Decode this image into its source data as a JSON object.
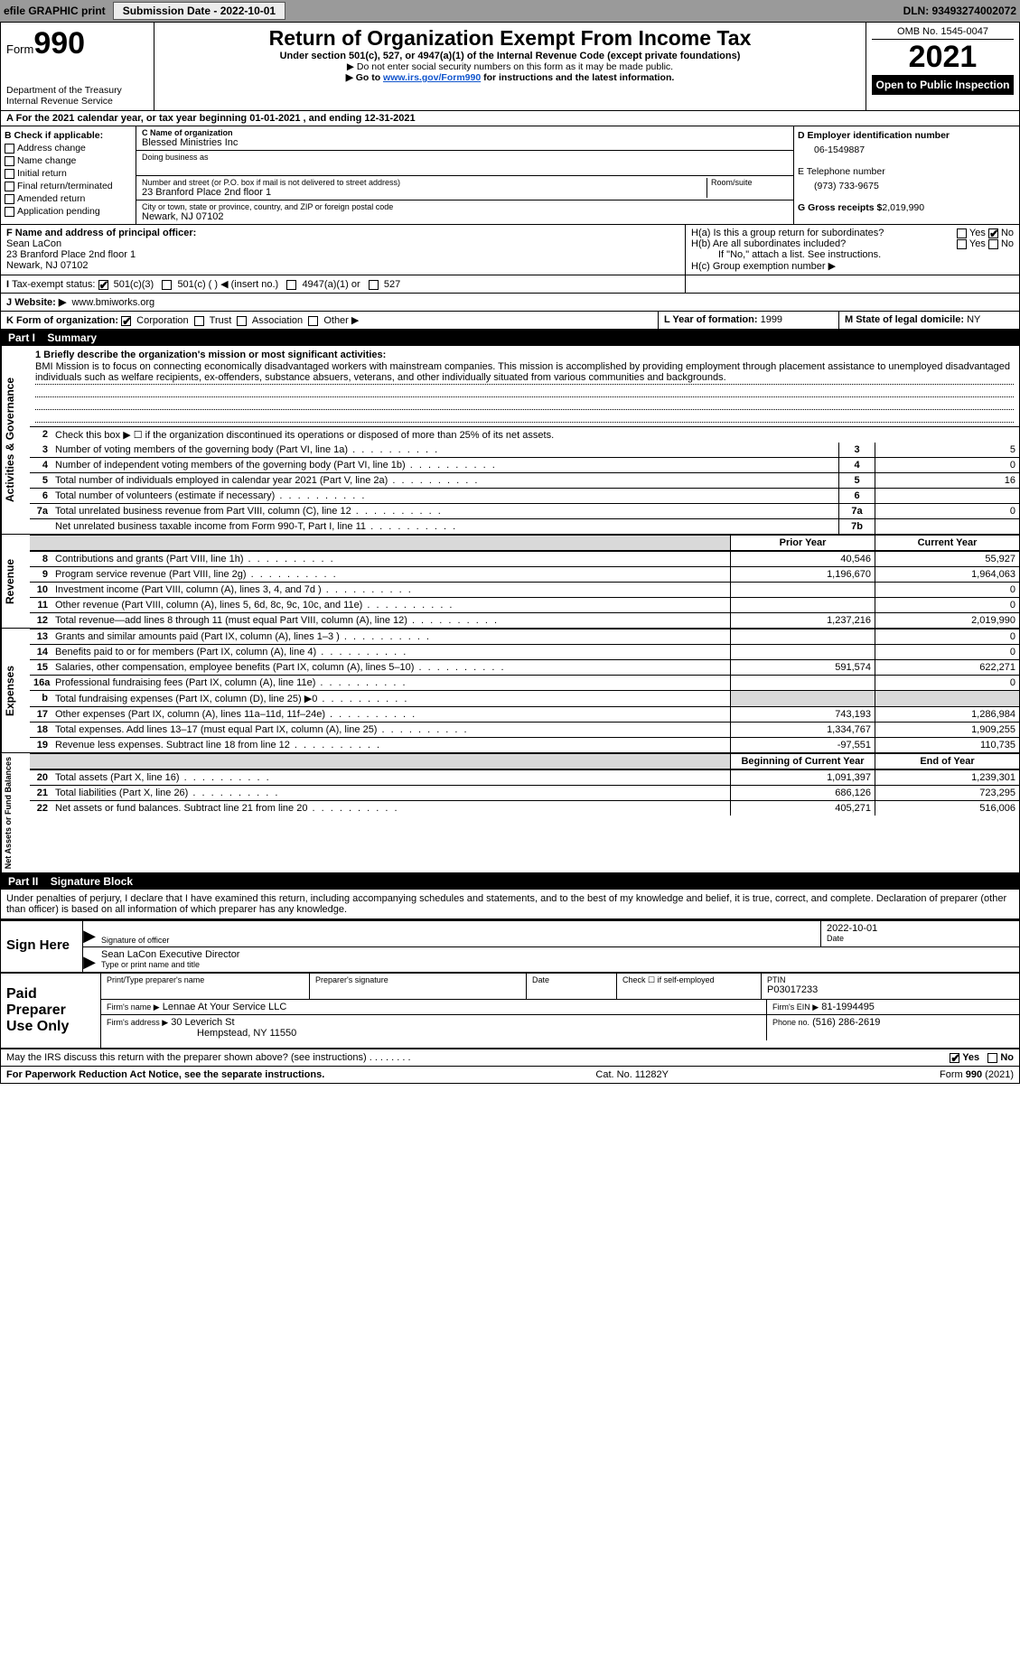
{
  "topbar": {
    "efile": "efile GRAPHIC print",
    "submission": "Submission Date - 2022-10-01",
    "dln": "DLN: 93493274002072"
  },
  "header": {
    "form_word": "Form",
    "form_no": "990",
    "dept": "Department of the Treasury",
    "irs": "Internal Revenue Service",
    "title": "Return of Organization Exempt From Income Tax",
    "subtitle": "Under section 501(c), 527, or 4947(a)(1) of the Internal Revenue Code (except private foundations)",
    "note1": "▶ Do not enter social security numbers on this form as it may be made public.",
    "note2_pre": "▶ Go to ",
    "note2_link": "www.irs.gov/Form990",
    "note2_post": " for instructions and the latest information.",
    "omb": "OMB No. 1545-0047",
    "year": "2021",
    "open": "Open to Public Inspection"
  },
  "A": "For the 2021 calendar year, or tax year beginning 01-01-2021   , and ending 12-31-2021",
  "B": {
    "label": "B Check if applicable:",
    "items": [
      "Address change",
      "Name change",
      "Initial return",
      "Final return/terminated",
      "Amended return",
      "Application pending"
    ]
  },
  "C": {
    "name_lbl": "C Name of organization",
    "name": "Blessed Ministries Inc",
    "dba_lbl": "Doing business as",
    "dba": "",
    "addr_lbl": "Number and street (or P.O. box if mail is not delivered to street address)",
    "room_lbl": "Room/suite",
    "addr": "23 Branford Place 2nd floor 1",
    "city_lbl": "City or town, state or province, country, and ZIP or foreign postal code",
    "city": "Newark, NJ  07102"
  },
  "D": {
    "lbl": "D Employer identification number",
    "val": "06-1549887"
  },
  "E": {
    "lbl": "E Telephone number",
    "val": "(973) 733-9675"
  },
  "G": {
    "lbl": "G Gross receipts $",
    "val": "2,019,990"
  },
  "F": {
    "lbl": "F  Name and address of principal officer:",
    "name": "Sean LaCon",
    "addr1": "23 Branford Place 2nd floor 1",
    "addr2": "Newark, NJ  07102"
  },
  "H": {
    "a": "H(a)  Is this a group return for subordinates?",
    "b": "H(b)  Are all subordinates included?",
    "b_note": "If \"No,\" attach a list. See instructions.",
    "c": "H(c)  Group exemption number ▶"
  },
  "I": {
    "lbl": "Tax-exempt status:",
    "opts": [
      "501(c)(3)",
      "501(c) (   ) ◀ (insert no.)",
      "4947(a)(1) or",
      "527"
    ]
  },
  "J": {
    "lbl": "Website: ▶",
    "val": "www.bmiworks.org"
  },
  "K": {
    "lbl": "K Form of organization:",
    "opts": [
      "Corporation",
      "Trust",
      "Association",
      "Other ▶"
    ]
  },
  "L": {
    "lbl": "L Year of formation:",
    "val": "1999"
  },
  "M": {
    "lbl": "M State of legal domicile:",
    "val": "NY"
  },
  "part1": {
    "title": "Part I",
    "name": "Summary",
    "q1": "1  Briefly describe the organization's mission or most significant activities:",
    "mission": "BMI Mission is to focus on connecting economically disadvantaged workers with mainstream companies. This mission is accomplished by providing employment through placement assistance to unemployed disadvantaged individuals such as welfare recipients, ex-offenders, substance absuers, veterans, and other individually situated from various communities and backgrounds.",
    "q2": "Check this box ▶ ☐  if the organization discontinued its operations or disposed of more than 25% of its net assets.",
    "lines_small": [
      {
        "n": "3",
        "d": "Number of voting members of the governing body (Part VI, line 1a)",
        "box": "3",
        "v": "5"
      },
      {
        "n": "4",
        "d": "Number of independent voting members of the governing body (Part VI, line 1b)",
        "box": "4",
        "v": "0"
      },
      {
        "n": "5",
        "d": "Total number of individuals employed in calendar year 2021 (Part V, line 2a)",
        "box": "5",
        "v": "16"
      },
      {
        "n": "6",
        "d": "Total number of volunteers (estimate if necessary)",
        "box": "6",
        "v": ""
      },
      {
        "n": "7a",
        "d": "Total unrelated business revenue from Part VIII, column (C), line 12",
        "box": "7a",
        "v": "0"
      },
      {
        "n": "",
        "d": "Net unrelated business taxable income from Form 990-T, Part I, line 11",
        "box": "7b",
        "v": ""
      }
    ],
    "col_hdr": {
      "b": "",
      "c1": "Prior Year",
      "c2": "Current Year"
    },
    "revenue": [
      {
        "n": "8",
        "d": "Contributions and grants (Part VIII, line 1h)",
        "c1": "40,546",
        "c2": "55,927"
      },
      {
        "n": "9",
        "d": "Program service revenue (Part VIII, line 2g)",
        "c1": "1,196,670",
        "c2": "1,964,063"
      },
      {
        "n": "10",
        "d": "Investment income (Part VIII, column (A), lines 3, 4, and 7d )",
        "c1": "",
        "c2": "0"
      },
      {
        "n": "11",
        "d": "Other revenue (Part VIII, column (A), lines 5, 6d, 8c, 9c, 10c, and 11e)",
        "c1": "",
        "c2": "0"
      },
      {
        "n": "12",
        "d": "Total revenue—add lines 8 through 11 (must equal Part VIII, column (A), line 12)",
        "c1": "1,237,216",
        "c2": "2,019,990"
      }
    ],
    "expenses": [
      {
        "n": "13",
        "d": "Grants and similar amounts paid (Part IX, column (A), lines 1–3 )",
        "c1": "",
        "c2": "0"
      },
      {
        "n": "14",
        "d": "Benefits paid to or for members (Part IX, column (A), line 4)",
        "c1": "",
        "c2": "0"
      },
      {
        "n": "15",
        "d": "Salaries, other compensation, employee benefits (Part IX, column (A), lines 5–10)",
        "c1": "591,574",
        "c2": "622,271"
      },
      {
        "n": "16a",
        "d": "Professional fundraising fees (Part IX, column (A), line 11e)",
        "c1": "",
        "c2": "0"
      },
      {
        "n": "b",
        "d": "Total fundraising expenses (Part IX, column (D), line 25) ▶0",
        "c1": "__SHADE__",
        "c2": "__SHADE__"
      },
      {
        "n": "17",
        "d": "Other expenses (Part IX, column (A), lines 11a–11d, 11f–24e)",
        "c1": "743,193",
        "c2": "1,286,984"
      },
      {
        "n": "18",
        "d": "Total expenses. Add lines 13–17 (must equal Part IX, column (A), line 25)",
        "c1": "1,334,767",
        "c2": "1,909,255"
      },
      {
        "n": "19",
        "d": "Revenue less expenses. Subtract line 18 from line 12",
        "c1": "-97,551",
        "c2": "110,735"
      }
    ],
    "net_hdr": {
      "c1": "Beginning of Current Year",
      "c2": "End of Year"
    },
    "net": [
      {
        "n": "20",
        "d": "Total assets (Part X, line 16)",
        "c1": "1,091,397",
        "c2": "1,239,301"
      },
      {
        "n": "21",
        "d": "Total liabilities (Part X, line 26)",
        "c1": "686,126",
        "c2": "723,295"
      },
      {
        "n": "22",
        "d": "Net assets or fund balances. Subtract line 21 from line 20",
        "c1": "405,271",
        "c2": "516,006"
      }
    ],
    "side_labels": {
      "gov": "Activities & Governance",
      "rev": "Revenue",
      "exp": "Expenses",
      "net": "Net Assets or Fund Balances"
    }
  },
  "part2": {
    "title": "Part II",
    "name": "Signature Block",
    "decl": "Under penalties of perjury, I declare that I have examined this return, including accompanying schedules and statements, and to the best of my knowledge and belief, it is true, correct, and complete. Declaration of preparer (other than officer) is based on all information of which preparer has any knowledge."
  },
  "sign": {
    "here": "Sign Here",
    "sig_lbl": "Signature of officer",
    "date_lbl": "Date",
    "date": "2022-10-01",
    "name": "Sean LaCon  Executive Director",
    "name_lbl": "Type or print name and title"
  },
  "prep": {
    "title": "Paid Preparer Use Only",
    "r1": {
      "a": "Print/Type preparer's name",
      "b": "Preparer's signature",
      "c": "Date",
      "d_lbl": "Check ☐ if self-employed",
      "e_lbl": "PTIN",
      "e": "P03017233"
    },
    "r2": {
      "a": "Firm's name    ▶",
      "b": "Lennae At Your Service LLC",
      "c": "Firm's EIN ▶",
      "d": "81-1994495"
    },
    "r3": {
      "a": "Firm's address ▶",
      "b": "30 Leverich St",
      "b2": "Hempstead, NY  11550",
      "c": "Phone no.",
      "d": "(516) 286-2619"
    }
  },
  "discuss": {
    "q": "May the IRS discuss this return with the preparer shown above? (see instructions)",
    "yes": "Yes",
    "no": "No"
  },
  "footer": {
    "l": "For Paperwork Reduction Act Notice, see the separate instructions.",
    "m": "Cat. No. 11282Y",
    "r": "Form 990 (2021)"
  }
}
